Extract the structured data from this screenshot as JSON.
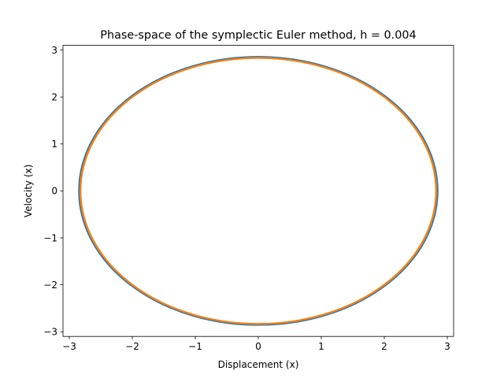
{
  "chart_data": {
    "type": "line",
    "title": "Phase-space of the symplectic Euler method, h = 0.004",
    "xlabel": "Displacement (x)",
    "ylabel": "Velocity (x)",
    "xlim": [
      -3.1,
      3.1
    ],
    "ylim": [
      -3.1,
      3.1
    ],
    "xticks": [
      -3,
      -2,
      -1,
      0,
      1,
      2,
      3
    ],
    "yticks": [
      -3,
      -2,
      -1,
      0,
      1,
      2,
      3
    ],
    "xtick_labels": [
      "−3",
      "−2",
      "−1",
      "0",
      "1",
      "2",
      "3"
    ],
    "ytick_labels": [
      "−3",
      "−2",
      "−1",
      "0",
      "1",
      "2",
      "3"
    ],
    "grid": false,
    "series": [
      {
        "color": "#1f77b4",
        "shape": "ellipse",
        "x_amplitude": 2.85,
        "y_amplitude": 2.86,
        "band": [
          -0.03,
          0.0
        ],
        "trace_count": 9
      },
      {
        "color": "#ff7f0e",
        "shape": "ellipse",
        "x_amplitude": 2.83,
        "y_amplitude": 2.84,
        "band": [
          -0.012,
          0.0
        ],
        "trace_count": 4
      }
    ]
  }
}
